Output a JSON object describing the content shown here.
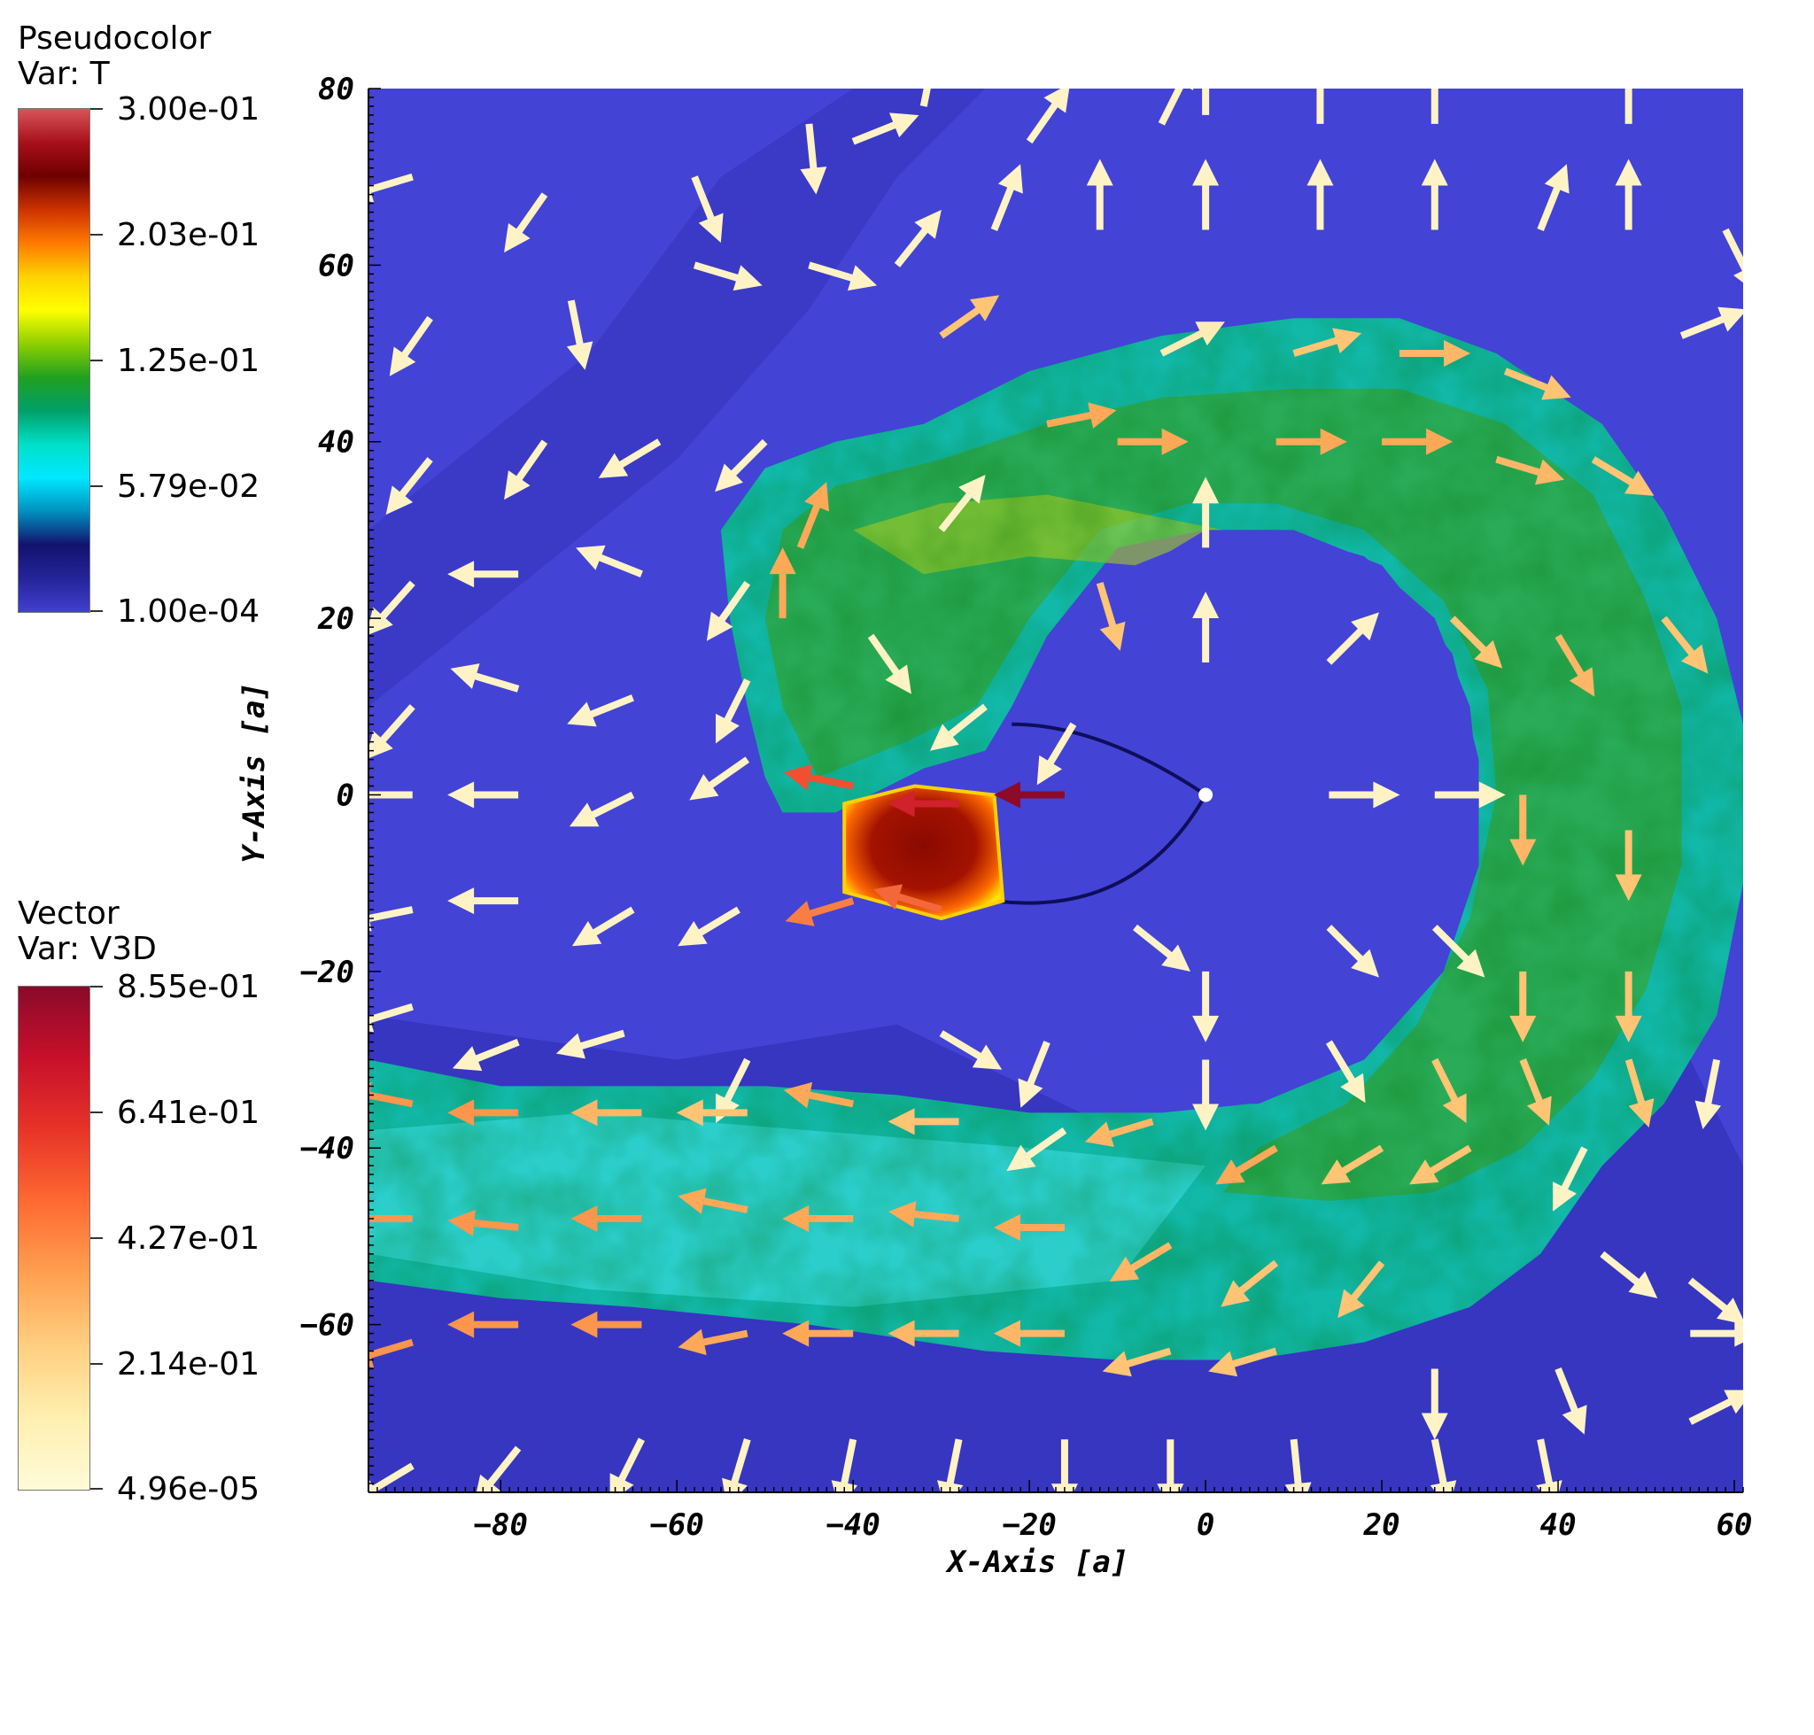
{
  "legend_pseudocolor": {
    "title_line1": "Pseudocolor",
    "title_line2": "Var: T",
    "labels": [
      "3.00e-01",
      "2.03e-01",
      "1.25e-01",
      "5.79e-02",
      "1.00e-04"
    ],
    "gradient": [
      "#d8555a",
      "#a8101a",
      "#6e0000",
      "#cc3200",
      "#ff7a00",
      "#ffd200",
      "#ffff00",
      "#8ed000",
      "#21a020",
      "#00a068",
      "#00e0c8",
      "#00e8ff",
      "#0090c0",
      "#12126e",
      "#24249a",
      "#4040d0"
    ]
  },
  "legend_vector": {
    "title_line1": "Vector",
    "title_line2": "Var: V3D",
    "labels": [
      "8.55e-01",
      "6.41e-01",
      "4.27e-01",
      "2.14e-01",
      "4.96e-05"
    ],
    "gradient": [
      "#8a0a2a",
      "#c8102a",
      "#e83328",
      "#ff6a32",
      "#ffa050",
      "#ffcf80",
      "#ffefb0",
      "#fffad8"
    ]
  },
  "chart_data": {
    "type": "heatmap",
    "xlabel": "X-Axis [a]",
    "ylabel": "Y-Axis [a]",
    "xlim": [
      -95,
      61
    ],
    "ylim": [
      -79,
      80
    ],
    "xticks": [
      -80,
      -60,
      -40,
      -20,
      0,
      20,
      40,
      60
    ],
    "yticks": [
      80,
      60,
      40,
      20,
      0,
      -20,
      -40,
      -60
    ],
    "scalar_field": "T",
    "vector_field": "V3D",
    "color_scale": {
      "T_min": 0.0001,
      "T_max": 0.3,
      "V3D_min": 4.96e-05,
      "V3D_max": 0.855
    },
    "background_color": "#4343d6",
    "structures": [
      {
        "name": "spiral-arm",
        "feature": "hot turbulent gas ring around origin",
        "T_approx": 0.09
      },
      {
        "name": "hot-knot",
        "x_range": [
          -42,
          -23
        ],
        "y_range": [
          -12,
          0
        ],
        "T_approx": 0.25
      },
      {
        "name": "central-star",
        "x": 0,
        "y": 0
      }
    ],
    "vectors": [
      {
        "x": -90,
        "y": 70,
        "dx": -1,
        "dy": -0.3,
        "v": 0.05
      },
      {
        "x": -75,
        "y": 68,
        "dx": -0.7,
        "dy": -1,
        "v": 0.05
      },
      {
        "x": -58,
        "y": 70,
        "dx": 0.4,
        "dy": -1,
        "v": 0.05
      },
      {
        "x": -45,
        "y": 76,
        "dx": 0.1,
        "dy": -1,
        "v": 0.05
      },
      {
        "x": -40,
        "y": 74,
        "dx": 1,
        "dy": 0.4,
        "v": 0.05
      },
      {
        "x": -32,
        "y": 78,
        "dx": 0.2,
        "dy": 1,
        "v": 0.05
      },
      {
        "x": -20,
        "y": 74,
        "dx": 0.7,
        "dy": 1,
        "v": 0.05
      },
      {
        "x": -5,
        "y": 76,
        "dx": 0.5,
        "dy": 1,
        "v": 0.05
      },
      {
        "x": 0,
        "y": 77,
        "dx": 0,
        "dy": 1,
        "v": 0.05
      },
      {
        "x": 13,
        "y": 76,
        "dx": 0,
        "dy": 1,
        "v": 0.05
      },
      {
        "x": 26,
        "y": 76,
        "dx": 0,
        "dy": 1,
        "v": 0.05
      },
      {
        "x": 48,
        "y": 76,
        "dx": 0,
        "dy": 1,
        "v": 0.05
      },
      {
        "x": -88,
        "y": 54,
        "dx": -0.7,
        "dy": -1,
        "v": 0.05
      },
      {
        "x": -72,
        "y": 56,
        "dx": 0.2,
        "dy": -1,
        "v": 0.05
      },
      {
        "x": -58,
        "y": 60,
        "dx": 1,
        "dy": -0.3,
        "v": 0.05
      },
      {
        "x": -45,
        "y": 60,
        "dx": 1,
        "dy": -0.3,
        "v": 0.05
      },
      {
        "x": -35,
        "y": 60,
        "dx": 0.8,
        "dy": 1,
        "v": 0.05
      },
      {
        "x": -24,
        "y": 64,
        "dx": 0.4,
        "dy": 1,
        "v": 0.05
      },
      {
        "x": -12,
        "y": 64,
        "dx": 0,
        "dy": 1,
        "v": 0.05
      },
      {
        "x": 0,
        "y": 64,
        "dx": 0,
        "dy": 1,
        "v": 0.05
      },
      {
        "x": 13,
        "y": 64,
        "dx": 0,
        "dy": 1,
        "v": 0.05
      },
      {
        "x": 26,
        "y": 64,
        "dx": 0,
        "dy": 1,
        "v": 0.05
      },
      {
        "x": 38,
        "y": 64,
        "dx": 0.4,
        "dy": 1,
        "v": 0.05
      },
      {
        "x": 48,
        "y": 64,
        "dx": 0,
        "dy": 1,
        "v": 0.05
      },
      {
        "x": 59,
        "y": 64,
        "dx": 0.5,
        "dy": -1,
        "v": 0.05
      },
      {
        "x": -88,
        "y": 38,
        "dx": -0.8,
        "dy": -1,
        "v": 0.05
      },
      {
        "x": -75,
        "y": 40,
        "dx": -0.7,
        "dy": -1,
        "v": 0.05
      },
      {
        "x": -62,
        "y": 40,
        "dx": -1,
        "dy": -0.6,
        "v": 0.05
      },
      {
        "x": -50,
        "y": 40,
        "dx": -0.8,
        "dy": -0.8,
        "v": 0.05
      },
      {
        "x": -30,
        "y": 52,
        "dx": 1,
        "dy": 0.7,
        "v": 0.3
      },
      {
        "x": -18,
        "y": 42,
        "dx": 1,
        "dy": 0.2,
        "v": 0.4
      },
      {
        "x": -5,
        "y": 50,
        "dx": 1,
        "dy": 0.5,
        "v": 0.1
      },
      {
        "x": 10,
        "y": 50,
        "dx": 1,
        "dy": 0.3,
        "v": 0.3
      },
      {
        "x": 22,
        "y": 50,
        "dx": 1,
        "dy": 0,
        "v": 0.35
      },
      {
        "x": 34,
        "y": 48,
        "dx": 1,
        "dy": -0.4,
        "v": 0.3
      },
      {
        "x": 54,
        "y": 52,
        "dx": 1,
        "dy": 0.4,
        "v": 0.05
      },
      {
        "x": -90,
        "y": 24,
        "dx": -0.8,
        "dy": -0.9,
        "v": 0.05
      },
      {
        "x": -78,
        "y": 25,
        "dx": -1,
        "dy": 0,
        "v": 0.05
      },
      {
        "x": -64,
        "y": 25,
        "dx": -1,
        "dy": 0.4,
        "v": 0.05
      },
      {
        "x": -52,
        "y": 24,
        "dx": -0.7,
        "dy": -1,
        "v": 0.05
      },
      {
        "x": -30,
        "y": 30,
        "dx": 0.8,
        "dy": 1,
        "v": 0.05
      },
      {
        "x": -10,
        "y": 40,
        "dx": 1,
        "dy": 0,
        "v": 0.4
      },
      {
        "x": 8,
        "y": 40,
        "dx": 1,
        "dy": 0,
        "v": 0.4
      },
      {
        "x": 20,
        "y": 40,
        "dx": 1,
        "dy": 0,
        "v": 0.4
      },
      {
        "x": 33,
        "y": 38,
        "dx": 1,
        "dy": -0.3,
        "v": 0.35
      },
      {
        "x": 44,
        "y": 38,
        "dx": 1,
        "dy": -0.6,
        "v": 0.3
      },
      {
        "x": -90,
        "y": 10,
        "dx": -0.8,
        "dy": -0.9,
        "v": 0.05
      },
      {
        "x": -78,
        "y": 12,
        "dx": -1,
        "dy": 0.3,
        "v": 0.05
      },
      {
        "x": -65,
        "y": 11,
        "dx": -1,
        "dy": -0.4,
        "v": 0.05
      },
      {
        "x": -52,
        "y": 13,
        "dx": -0.5,
        "dy": -1,
        "v": 0.05
      },
      {
        "x": -46,
        "y": 28,
        "dx": 0.4,
        "dy": 1,
        "v": 0.4
      },
      {
        "x": -48,
        "y": 20,
        "dx": 0,
        "dy": 1,
        "v": 0.4
      },
      {
        "x": -38,
        "y": 18,
        "dx": 0.7,
        "dy": -1,
        "v": 0.05
      },
      {
        "x": -25,
        "y": 10,
        "dx": -1,
        "dy": -0.8,
        "v": 0.05
      },
      {
        "x": -15,
        "y": 8,
        "dx": -0.6,
        "dy": -1,
        "v": 0.05
      },
      {
        "x": -12,
        "y": 24,
        "dx": 0.3,
        "dy": -1,
        "v": 0.3
      },
      {
        "x": 0,
        "y": 28,
        "dx": 0,
        "dy": 1,
        "v": 0.05
      },
      {
        "x": 0,
        "y": 15,
        "dx": 0,
        "dy": 1,
        "v": 0.05
      },
      {
        "x": 14,
        "y": 15,
        "dx": 1,
        "dy": 1,
        "v": 0.05
      },
      {
        "x": 28,
        "y": 20,
        "dx": 1,
        "dy": -1,
        "v": 0.3
      },
      {
        "x": 40,
        "y": 18,
        "dx": 0.6,
        "dy": -1,
        "v": 0.35
      },
      {
        "x": 52,
        "y": 20,
        "dx": 0.8,
        "dy": -1,
        "v": 0.3
      },
      {
        "x": -90,
        "y": 0,
        "dx": -1,
        "dy": 0,
        "v": 0.05
      },
      {
        "x": -78,
        "y": 0,
        "dx": -1,
        "dy": 0,
        "v": 0.05
      },
      {
        "x": -65,
        "y": 0,
        "dx": -1,
        "dy": -0.5,
        "v": 0.05
      },
      {
        "x": -52,
        "y": 4,
        "dx": -1,
        "dy": -0.7,
        "v": 0.05
      },
      {
        "x": -40,
        "y": 1,
        "dx": -1,
        "dy": 0.2,
        "v": 0.6
      },
      {
        "x": -28,
        "y": -1,
        "dx": -1,
        "dy": 0,
        "v": 0.7
      },
      {
        "x": -16,
        "y": 0,
        "dx": -1,
        "dy": 0,
        "v": 0.85
      },
      {
        "x": 14,
        "y": 0,
        "dx": 1,
        "dy": 0,
        "v": 0.05
      },
      {
        "x": 26,
        "y": 0,
        "dx": 1,
        "dy": 0,
        "v": 0.05
      },
      {
        "x": 36,
        "y": 0,
        "dx": 0,
        "dy": -1,
        "v": 0.35
      },
      {
        "x": 48,
        "y": -4,
        "dx": 0,
        "dy": -1,
        "v": 0.3
      },
      {
        "x": -90,
        "y": -13,
        "dx": -1,
        "dy": -0.2,
        "v": 0.05
      },
      {
        "x": -78,
        "y": -12,
        "dx": -1,
        "dy": 0,
        "v": 0.05
      },
      {
        "x": -65,
        "y": -13,
        "dx": -1,
        "dy": -0.6,
        "v": 0.05
      },
      {
        "x": -53,
        "y": -13,
        "dx": -1,
        "dy": -0.6,
        "v": 0.05
      },
      {
        "x": -40,
        "y": -12,
        "dx": -1,
        "dy": -0.3,
        "v": 0.5
      },
      {
        "x": -30,
        "y": -13,
        "dx": -1,
        "dy": 0.3,
        "v": 0.55
      },
      {
        "x": -8,
        "y": -15,
        "dx": 1,
        "dy": -0.8,
        "v": 0.05
      },
      {
        "x": 0,
        "y": -20,
        "dx": 0,
        "dy": -1,
        "v": 0.05
      },
      {
        "x": 14,
        "y": -15,
        "dx": 1,
        "dy": -1,
        "v": 0.05
      },
      {
        "x": 26,
        "y": -15,
        "dx": 1,
        "dy": -1,
        "v": 0.05
      },
      {
        "x": 36,
        "y": -20,
        "dx": 0,
        "dy": -1,
        "v": 0.3
      },
      {
        "x": 48,
        "y": -20,
        "dx": 0,
        "dy": -1,
        "v": 0.3
      },
      {
        "x": -90,
        "y": -24,
        "dx": -1,
        "dy": -0.3,
        "v": 0.05
      },
      {
        "x": -78,
        "y": -28,
        "dx": -1,
        "dy": -0.4,
        "v": 0.05
      },
      {
        "x": -66,
        "y": -27,
        "dx": -1,
        "dy": -0.3,
        "v": 0.05
      },
      {
        "x": -52,
        "y": -30,
        "dx": -0.5,
        "dy": -1,
        "v": 0.05
      },
      {
        "x": -30,
        "y": -27,
        "dx": 1,
        "dy": -0.6,
        "v": 0.05
      },
      {
        "x": -18,
        "y": -28,
        "dx": -0.4,
        "dy": -1,
        "v": 0.05
      },
      {
        "x": 0,
        "y": -30,
        "dx": 0,
        "dy": -1,
        "v": 0.05
      },
      {
        "x": 14,
        "y": -28,
        "dx": 0.6,
        "dy": -1,
        "v": 0.05
      },
      {
        "x": 26,
        "y": -30,
        "dx": 0.5,
        "dy": -1,
        "v": 0.3
      },
      {
        "x": 36,
        "y": -30,
        "dx": 0.4,
        "dy": -1,
        "v": 0.3
      },
      {
        "x": 48,
        "y": -30,
        "dx": 0.3,
        "dy": -1,
        "v": 0.3
      },
      {
        "x": 58,
        "y": -30,
        "dx": -0.2,
        "dy": -1,
        "v": 0.05
      },
      {
        "x": -90,
        "y": -35,
        "dx": -1,
        "dy": 0.2,
        "v": 0.45
      },
      {
        "x": -78,
        "y": -36,
        "dx": -1,
        "dy": 0,
        "v": 0.45
      },
      {
        "x": -64,
        "y": -36,
        "dx": -1,
        "dy": 0,
        "v": 0.35
      },
      {
        "x": -52,
        "y": -36,
        "dx": -1,
        "dy": 0,
        "v": 0.3
      },
      {
        "x": -40,
        "y": -35,
        "dx": -1,
        "dy": 0.2,
        "v": 0.4
      },
      {
        "x": -28,
        "y": -37,
        "dx": -1,
        "dy": 0,
        "v": 0.3
      },
      {
        "x": -16,
        "y": -38,
        "dx": -1,
        "dy": -0.7,
        "v": 0.05
      },
      {
        "x": -6,
        "y": -37,
        "dx": -1,
        "dy": -0.3,
        "v": 0.35
      },
      {
        "x": 8,
        "y": -40,
        "dx": -1,
        "dy": -0.6,
        "v": 0.4
      },
      {
        "x": 20,
        "y": -40,
        "dx": -1,
        "dy": -0.6,
        "v": 0.3
      },
      {
        "x": 30,
        "y": -40,
        "dx": -1,
        "dy": -0.6,
        "v": 0.3
      },
      {
        "x": 43,
        "y": -40,
        "dx": -0.5,
        "dy": -1,
        "v": 0.05
      },
      {
        "x": -90,
        "y": -48,
        "dx": -1,
        "dy": 0,
        "v": 0.45
      },
      {
        "x": -78,
        "y": -49,
        "dx": -1,
        "dy": 0.1,
        "v": 0.45
      },
      {
        "x": -64,
        "y": -48,
        "dx": -1,
        "dy": 0,
        "v": 0.45
      },
      {
        "x": -52,
        "y": -47,
        "dx": -1,
        "dy": 0.2,
        "v": 0.4
      },
      {
        "x": -40,
        "y": -48,
        "dx": -1,
        "dy": 0,
        "v": 0.4
      },
      {
        "x": -28,
        "y": -48,
        "dx": -1,
        "dy": 0.1,
        "v": 0.4
      },
      {
        "x": -16,
        "y": -49,
        "dx": -1,
        "dy": 0,
        "v": 0.4
      },
      {
        "x": -4,
        "y": -51,
        "dx": -1,
        "dy": -0.6,
        "v": 0.35
      },
      {
        "x": 8,
        "y": -53,
        "dx": -1,
        "dy": -0.8,
        "v": 0.3
      },
      {
        "x": 20,
        "y": -53,
        "dx": -0.8,
        "dy": -1,
        "v": 0.3
      },
      {
        "x": 45,
        "y": -52,
        "dx": 1,
        "dy": -0.8,
        "v": 0.05
      },
      {
        "x": 55,
        "y": -55,
        "dx": 1,
        "dy": -0.8,
        "v": 0.05
      },
      {
        "x": -90,
        "y": -62,
        "dx": -1,
        "dy": -0.3,
        "v": 0.45
      },
      {
        "x": -78,
        "y": -60,
        "dx": -1,
        "dy": 0,
        "v": 0.45
      },
      {
        "x": -64,
        "y": -60,
        "dx": -1,
        "dy": 0,
        "v": 0.45
      },
      {
        "x": -52,
        "y": -61,
        "dx": -1,
        "dy": -0.2,
        "v": 0.4
      },
      {
        "x": -40,
        "y": -61,
        "dx": -1,
        "dy": 0,
        "v": 0.4
      },
      {
        "x": -28,
        "y": -61,
        "dx": -1,
        "dy": 0,
        "v": 0.35
      },
      {
        "x": -16,
        "y": -61,
        "dx": -1,
        "dy": 0,
        "v": 0.35
      },
      {
        "x": -4,
        "y": -63,
        "dx": -1,
        "dy": -0.3,
        "v": 0.3
      },
      {
        "x": 8,
        "y": -63,
        "dx": -1,
        "dy": -0.3,
        "v": 0.3
      },
      {
        "x": 26,
        "y": -65,
        "dx": 0,
        "dy": -1,
        "v": 0.05
      },
      {
        "x": 40,
        "y": -65,
        "dx": 0.4,
        "dy": -1,
        "v": 0.05
      },
      {
        "x": 55,
        "y": -61,
        "dx": 1,
        "dy": 0,
        "v": 0.05
      },
      {
        "x": 55,
        "y": -71,
        "dx": 1,
        "dy": 0.5,
        "v": 0.05
      },
      {
        "x": -90,
        "y": -76,
        "dx": -1,
        "dy": -0.6,
        "v": 0.05
      },
      {
        "x": -78,
        "y": -74,
        "dx": -0.8,
        "dy": -1,
        "v": 0.05
      },
      {
        "x": -64,
        "y": -73,
        "dx": -0.5,
        "dy": -1,
        "v": 0.05
      },
      {
        "x": -52,
        "y": -73,
        "dx": -0.3,
        "dy": -1,
        "v": 0.05
      },
      {
        "x": -40,
        "y": -73,
        "dx": -0.2,
        "dy": -1,
        "v": 0.05
      },
      {
        "x": -28,
        "y": -73,
        "dx": -0.2,
        "dy": -1,
        "v": 0.05
      },
      {
        "x": -16,
        "y": -73,
        "dx": 0,
        "dy": -1,
        "v": 0.05
      },
      {
        "x": -4,
        "y": -73,
        "dx": 0,
        "dy": -1,
        "v": 0.05
      },
      {
        "x": 10,
        "y": -73,
        "dx": 0.1,
        "dy": -1,
        "v": 0.05
      },
      {
        "x": 26,
        "y": -73,
        "dx": 0.2,
        "dy": -1,
        "v": 0.05
      },
      {
        "x": 38,
        "y": -73,
        "dx": 0.2,
        "dy": -1,
        "v": 0.05
      }
    ]
  }
}
